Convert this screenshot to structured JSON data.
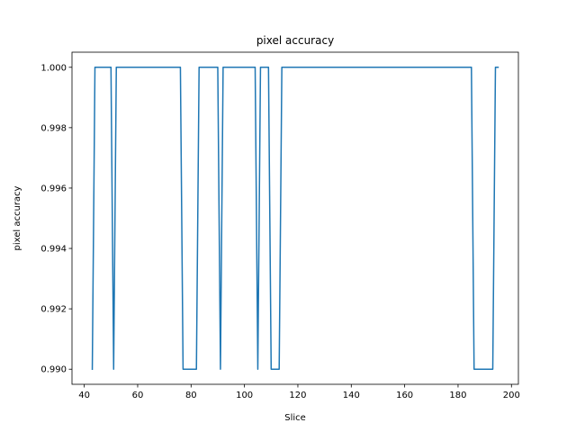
{
  "chart_data": {
    "type": "line",
    "title": "pixel accuracy",
    "xlabel": "Slice",
    "ylabel": "pixel accuracy",
    "xlim": [
      35.4,
      202.6
    ],
    "ylim": [
      0.9895,
      1.0005
    ],
    "xticks": [
      40,
      60,
      80,
      100,
      120,
      140,
      160,
      180,
      200
    ],
    "yticks": [
      0.99,
      0.992,
      0.994,
      0.996,
      0.998,
      1.0
    ],
    "ytick_labels": [
      "0.990",
      "0.992",
      "0.994",
      "0.996",
      "0.998",
      "1.000"
    ],
    "grid": false,
    "series": [
      {
        "color": "#1f77b4",
        "x": [
          43,
          44,
          50,
          51,
          52,
          76,
          77,
          82,
          83,
          90,
          91,
          92,
          104,
          105,
          106,
          109,
          110,
          113,
          114,
          185,
          186,
          193,
          194,
          195
        ],
        "y": [
          0.99,
          1.0,
          1.0,
          0.99,
          1.0,
          1.0,
          0.99,
          0.99,
          1.0,
          1.0,
          0.99,
          1.0,
          1.0,
          0.99,
          1.0,
          1.0,
          0.99,
          0.99,
          1.0,
          1.0,
          0.99,
          0.99,
          1.0,
          1.0
        ]
      }
    ]
  }
}
